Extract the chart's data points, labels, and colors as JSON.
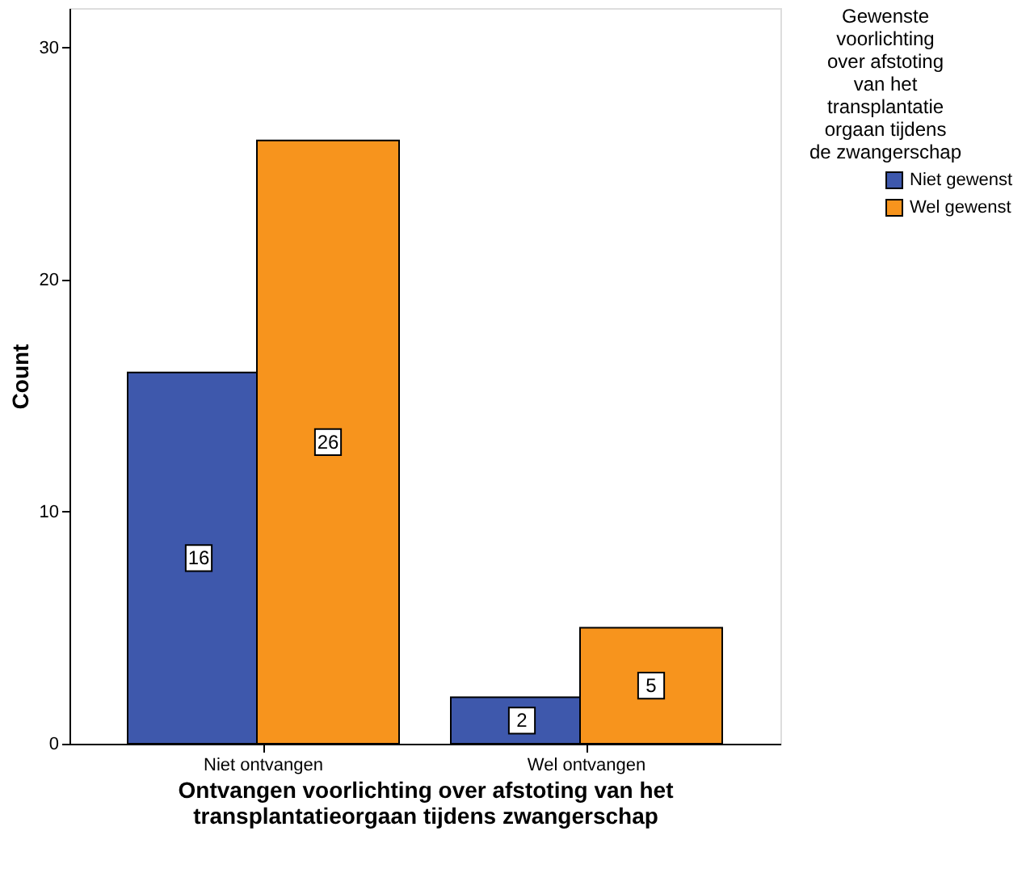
{
  "chart_data": {
    "type": "bar",
    "xlabel": "Ontvangen voorlichting over afstoting van het transplantatieorgaan tijdens zwangerschap",
    "ylabel": "Count",
    "legend_title": "Gewenste voorlichting over afstoting van het transplantatie orgaan tijdens de zwangerschap",
    "categories": [
      "Niet ontvangen",
      "Wel ontvangen"
    ],
    "series": [
      {
        "name": "Niet gewenst",
        "color": "#3e58ac",
        "values": [
          16,
          2
        ]
      },
      {
        "name": "Wel gewenst",
        "color": "#f7941d",
        "values": [
          26,
          5
        ]
      }
    ],
    "ylim": [
      0,
      31.7
    ],
    "yticks": [
      0,
      10,
      20,
      30
    ],
    "data_labels": true,
    "legend": "top right",
    "grid": false
  }
}
